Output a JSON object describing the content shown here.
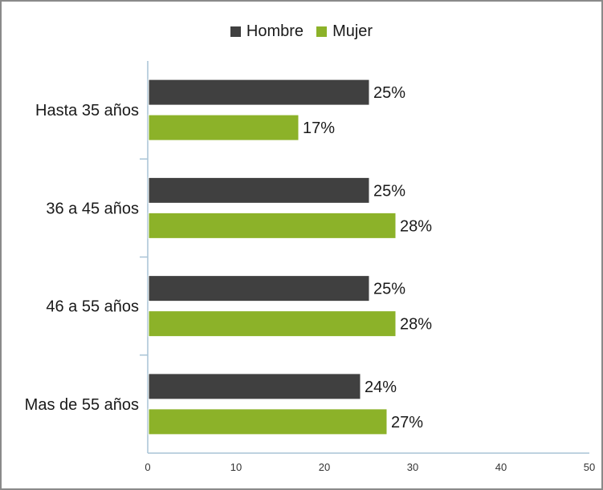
{
  "chart_data": {
    "type": "bar",
    "orientation": "horizontal",
    "categories": [
      "Hasta 35 años",
      "36 a 45 años",
      "46 a 55 años",
      "Mas de 55 años"
    ],
    "series": [
      {
        "name": "Hombre",
        "color": "#404040",
        "values": [
          25,
          25,
          25,
          24
        ],
        "labels": [
          "25%",
          "25%",
          "25%",
          "24%"
        ]
      },
      {
        "name": "Mujer",
        "color": "#8cb229",
        "values": [
          17,
          28,
          28,
          27
        ],
        "labels": [
          "17%",
          "28%",
          "28%",
          "27%"
        ]
      }
    ],
    "xlim": [
      0,
      50
    ],
    "xticks": [
      "0",
      "10",
      "20",
      "30",
      "40",
      "50"
    ],
    "legend_position": "top-center",
    "grid": false
  }
}
